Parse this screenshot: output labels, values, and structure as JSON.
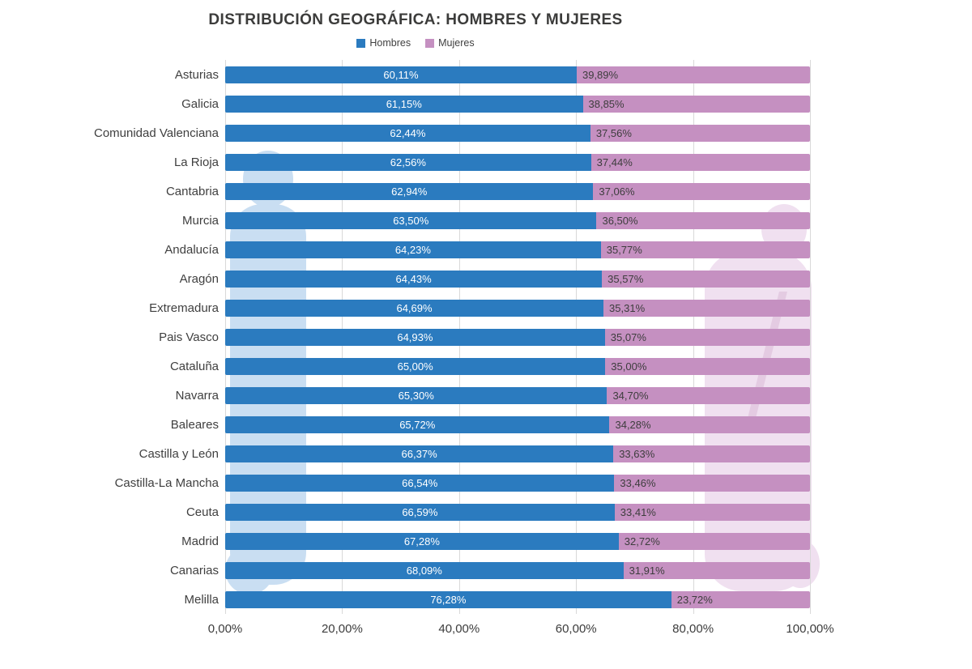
{
  "title": "DISTRIBUCIÓN GEOGRÁFICA: HOMBRES Y MUJERES",
  "legend": [
    {
      "label": "Hombres",
      "color": "#2b7bbf"
    },
    {
      "label": "Mujeres",
      "color": "#c590c1"
    }
  ],
  "colors": {
    "hombres": "#2b7bbf",
    "mujeres": "#c590c1",
    "value_text_on_blue": "#ffffff",
    "value_text_on_pink": "#3d3d3d",
    "gridline": "#d9d9d9",
    "watermark_blue": "#c9def2",
    "watermark_pink": "#f0e0f0"
  },
  "chart_data": {
    "type": "bar",
    "orientation": "horizontal",
    "stacked": true,
    "title": "DISTRIBUCIÓN GEOGRÁFICA: HOMBRES Y MUJERES",
    "legend_position": "top",
    "grid": "vertical",
    "xlim": [
      0,
      100
    ],
    "x_ticks": [
      "0,00%",
      "20,00%",
      "40,00%",
      "60,00%",
      "80,00%",
      "100,00%"
    ],
    "x_tick_values": [
      0,
      20,
      40,
      60,
      80,
      100
    ],
    "categories": [
      "Asturias",
      "Galicia",
      "Comunidad Valenciana",
      "La Rioja",
      "Cantabria",
      "Murcia",
      "Andalucía",
      "Aragón",
      "Extremadura",
      "Pais Vasco",
      "Cataluña",
      "Navarra",
      "Baleares",
      "Castilla y León",
      "Castilla-La Mancha",
      "Ceuta",
      "Madrid",
      "Canarias",
      "Melilla"
    ],
    "series": [
      {
        "name": "Hombres",
        "color": "#2b7bbf",
        "values": [
          60.11,
          61.15,
          62.44,
          62.56,
          62.94,
          63.5,
          64.23,
          64.43,
          64.69,
          64.93,
          65.0,
          65.3,
          65.72,
          66.37,
          66.54,
          66.59,
          67.28,
          68.09,
          76.28
        ]
      },
      {
        "name": "Mujeres",
        "color": "#c590c1",
        "values": [
          39.89,
          38.85,
          37.56,
          37.44,
          37.06,
          36.5,
          35.77,
          35.57,
          35.31,
          35.07,
          35.0,
          34.7,
          34.28,
          33.63,
          33.46,
          33.41,
          32.72,
          31.91,
          23.72
        ]
      }
    ]
  }
}
